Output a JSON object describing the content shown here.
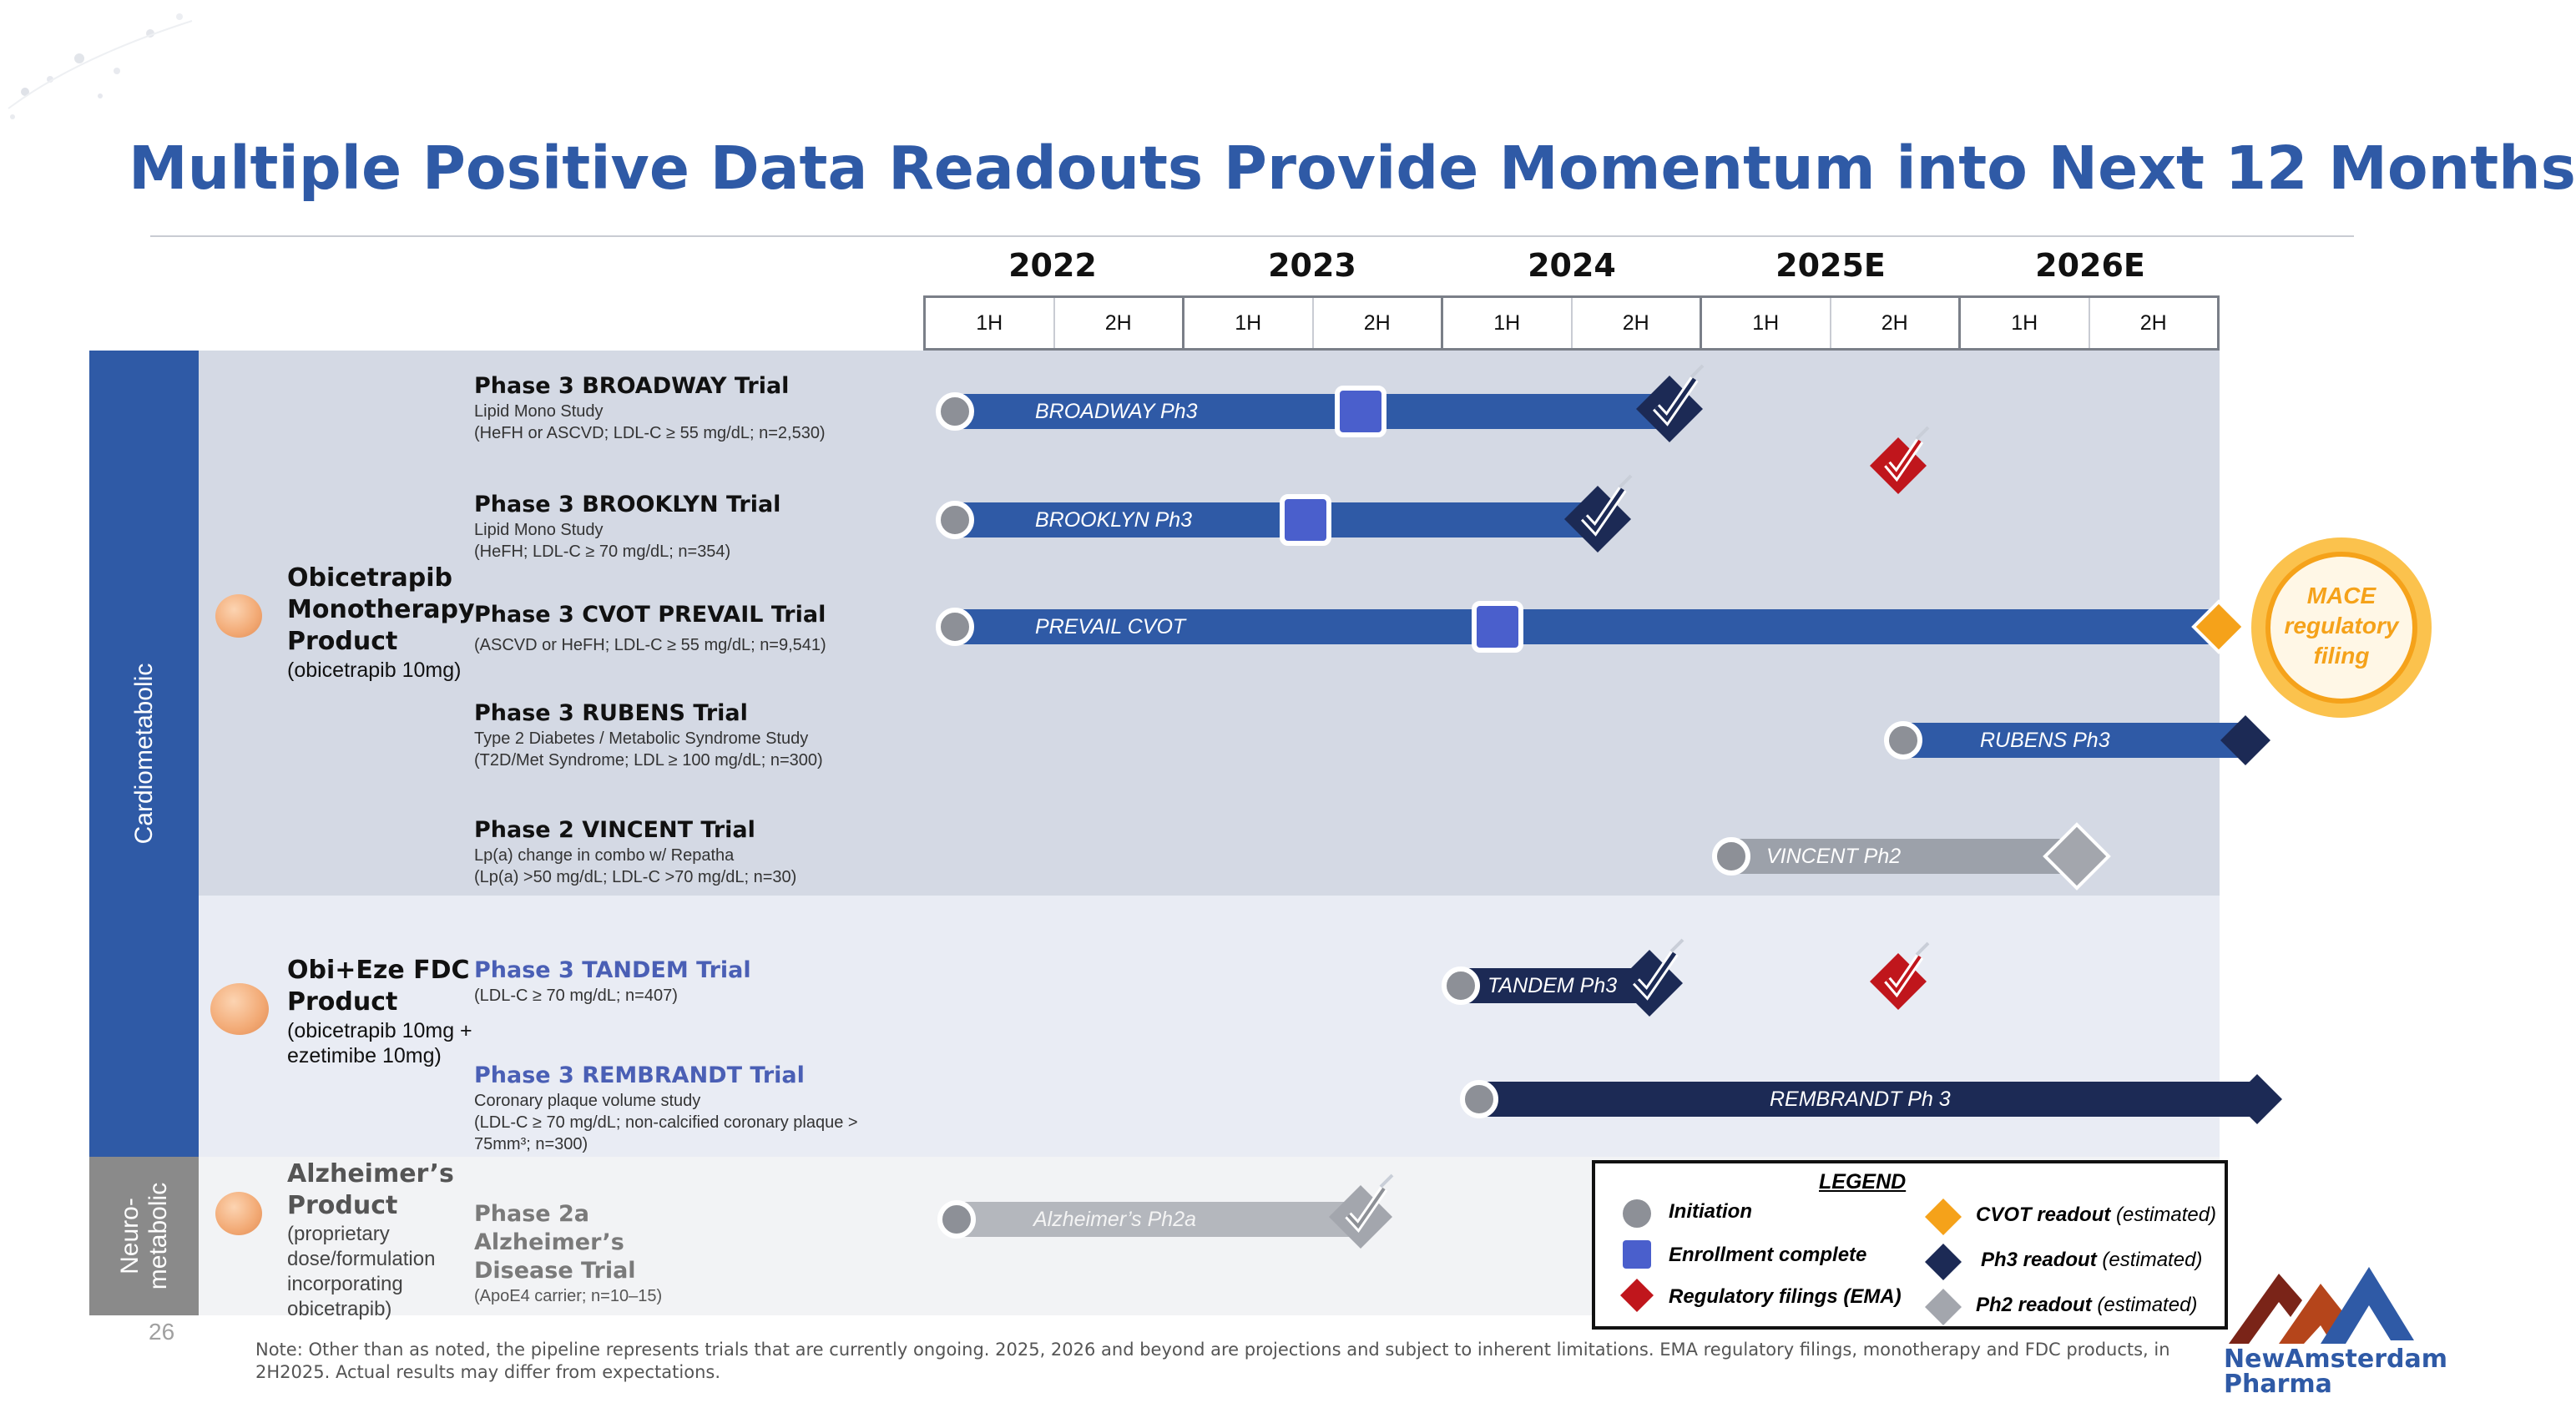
{
  "title": "Multiple Positive Data Readouts Provide Momentum into Next 12 Months",
  "years": [
    "2022",
    "2023",
    "2024",
    "2025E",
    "2026E"
  ],
  "halves": [
    "1H",
    "2H",
    "1H",
    "2H",
    "1H",
    "2H",
    "1H",
    "2H",
    "1H",
    "2H"
  ],
  "categories": {
    "cardio": "Cardiometabolic",
    "neuro": "Neuro-\nmetabolic"
  },
  "page_number": "26",
  "products": {
    "obi": {
      "name": "Obicetrapib Monotherapy Product",
      "sub": "(obicetrapib 10mg)"
    },
    "fdc": {
      "name": "Obi+Eze FDC Product",
      "sub": "(obicetrapib 10mg + ezetimibe 10mg)"
    },
    "alz": {
      "name": "Alzheimer’s Product",
      "sub": "(proprietary dose/formulation incorporating obicetrapib)"
    }
  },
  "trials": {
    "broadway": {
      "name": "Phase 3 BROADWAY Trial",
      "line1": "Lipid Mono Study",
      "line2": "(HeFH or ASCVD; LDL-C ≥ 55 mg/dL; n=2,530)",
      "bar": "BROADWAY Ph3"
    },
    "brooklyn": {
      "name": "Phase 3 BROOKLYN Trial",
      "line1": "Lipid Mono Study",
      "line2": "(HeFH; LDL-C ≥ 70 mg/dL; n=354)",
      "bar": "BROOKLYN Ph3"
    },
    "prevail": {
      "name": "Phase 3 CVOT PREVAIL Trial",
      "line1": "(ASCVD or HeFH; LDL-C ≥ 55 mg/dL; n=9,541)",
      "bar": "PREVAIL CVOT"
    },
    "rubens": {
      "name": "Phase 3 RUBENS Trial",
      "line1": "Type 2 Diabetes / Metabolic Syndrome Study",
      "line2": "(T2D/Met Syndrome; LDL ≥ 100 mg/dL; n=300)",
      "bar": "RUBENS Ph3"
    },
    "vincent": {
      "name": "Phase 2 VINCENT Trial",
      "line1": "Lp(a) change in combo w/ Repatha",
      "line2": "(Lp(a) >50 mg/dL; LDL-C >70 mg/dL; n=30)",
      "bar": "VINCENT Ph2"
    },
    "tandem": {
      "name": "Phase 3 TANDEM Trial",
      "line1": "(LDL-C ≥ 70 mg/dL; n=407)",
      "bar": "TANDEM Ph3"
    },
    "rembrandt": {
      "name": "Phase 3 REMBRANDT Trial",
      "line1": "Coronary plaque volume study",
      "line2": "(LDL-C ≥ 70 mg/dL; non-calcified coronary plaque >",
      "line3": "75mm³; n=300)",
      "bar": "REMBRANDT Ph 3"
    },
    "alz": {
      "name": "Phase 2a Alzheimer’s Disease Trial",
      "line1": "(ApoE4 carrier; n=10–15)",
      "bar": "Alzheimer’s Ph2a"
    }
  },
  "mace": {
    "line1": "MACE",
    "line2": "regulatory",
    "line3": "filing"
  },
  "legend": {
    "title": "LEGEND",
    "initiation": "Initiation",
    "enrollment": "Enrollment complete",
    "regulatory": "Regulatory filings (EMA)",
    "cvot": "CVOT readout",
    "ph3": "Ph3 readout",
    "ph2": "Ph2 readout",
    "estimated": "(estimated)"
  },
  "note": "Note: Other than as noted, the pipeline represents trials that are currently ongoing. 2025, 2026 and beyond are projections and subject to inherent limitations. EMA regulatory filings, monotherapy and FDC products,  in 2H2025. Actual results may differ from expectations.",
  "logo": {
    "line1": "NewAmsterdam",
    "line2": "Pharma"
  },
  "colors": {
    "title_blue": "#2f5aa6",
    "bar_blue": "#2f5aa6",
    "enroll_blue": "#4a5fcc",
    "navy": "#1c2a55",
    "red": "#c0161c",
    "orange": "#f5a21a",
    "gray": "#9ca1aa"
  }
}
